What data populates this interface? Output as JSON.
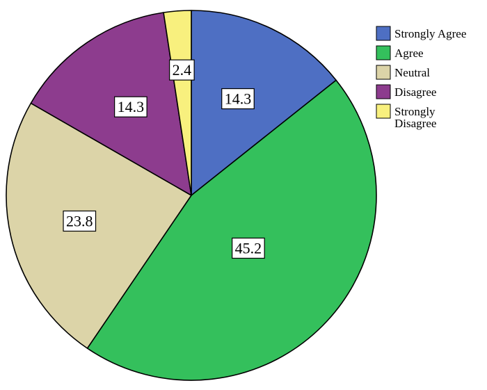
{
  "chart_data": {
    "type": "pie",
    "title": "",
    "start_angle_deg": 0,
    "direction": "clockwise",
    "slices": [
      {
        "label": "Strongly Agree",
        "value": 14.3,
        "color": "#4E6FC3"
      },
      {
        "label": "Agree",
        "value": 45.2,
        "color": "#34C05C"
      },
      {
        "label": "Neutral",
        "value": 23.8,
        "color": "#DCD4A8"
      },
      {
        "label": "Disagree",
        "value": 14.3,
        "color": "#8D3C8E"
      },
      {
        "label": "Strongly Disagree",
        "value": 2.4,
        "color": "#F8F07E"
      }
    ],
    "data_labels": [
      "14.3",
      "45.2",
      "23.8",
      "14.3",
      "2.4"
    ],
    "legend": {
      "position": "top-right",
      "entries": [
        {
          "lines": [
            "Strongly Agree"
          ]
        },
        {
          "lines": [
            "Agree"
          ]
        },
        {
          "lines": [
            "Neutral"
          ]
        },
        {
          "lines": [
            "Disagree"
          ]
        },
        {
          "lines": [
            "Strongly",
            "Disagree"
          ]
        }
      ]
    }
  }
}
